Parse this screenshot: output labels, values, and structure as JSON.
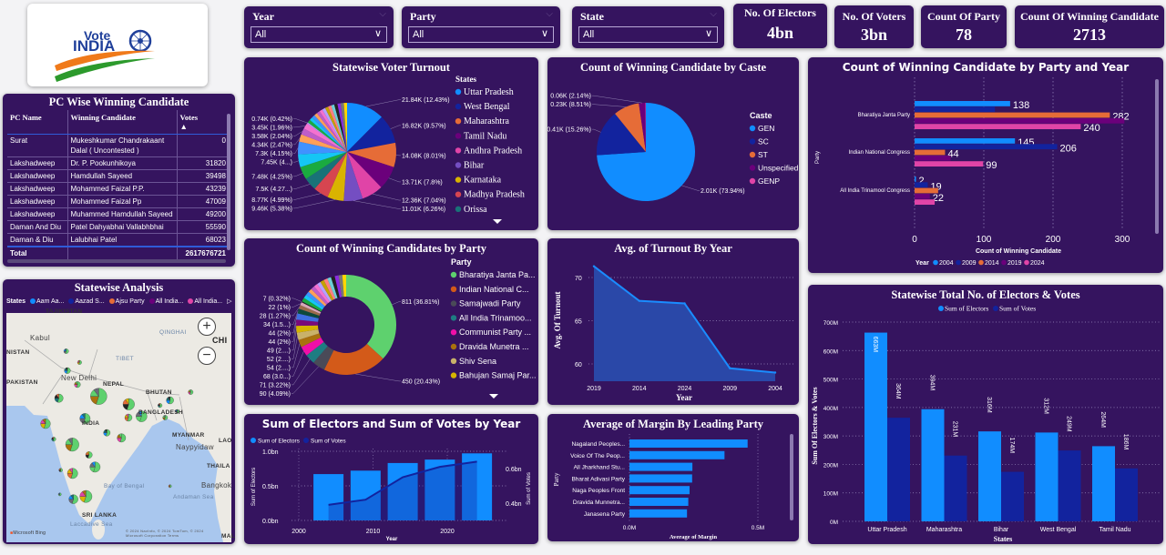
{
  "logo": {
    "text_top": "Vote",
    "text_bottom": "INDIA"
  },
  "filters": [
    {
      "label": "Year",
      "value": "All"
    },
    {
      "label": "Party",
      "value": "All"
    },
    {
      "label": "State",
      "value": "All"
    }
  ],
  "kpis": [
    {
      "title": "No. Of Electors",
      "value": "4bn"
    },
    {
      "title": "No. Of Voters",
      "value": "3bn"
    },
    {
      "title": "Count Of Party",
      "value": "78"
    },
    {
      "title": "Count Of Winning Candidate",
      "value": "2713"
    }
  ],
  "pc_table": {
    "title": "PC Wise Winning Candidate",
    "columns": [
      "PC Name",
      "Winning Candidate",
      "Votes"
    ],
    "rows": [
      [
        "Surat",
        "Mukeshkumar Chandrakaant Dalal ( Uncontested )",
        "0"
      ],
      [
        "Lakshadweep",
        "Dr. P. Pookunhikoya",
        "31820"
      ],
      [
        "Lakshadweep",
        "Hamdullah Sayeed",
        "39498"
      ],
      [
        "Lakshadweep",
        "Mohammed Faizal P.P.",
        "43239"
      ],
      [
        "Lakshadweep",
        "Mohammed Faizal Pp",
        "47009"
      ],
      [
        "Lakshadweep",
        "Muhammed Hamdullah Sayeed",
        "49200"
      ],
      [
        "Daman And Diu",
        "Patel Dahyabhai Vallabhbhai",
        "55590"
      ],
      [
        "Daman & Diu",
        "Lalubhai Patel",
        "68023"
      ]
    ],
    "total": [
      "Total",
      "",
      "2617676721"
    ]
  },
  "map": {
    "title": "Statewise Analysis",
    "legend_label": "States",
    "legend": [
      {
        "name": "Aam Aa...",
        "color": "#118DFF"
      },
      {
        "name": "Aazad S...",
        "color": "#12239E"
      },
      {
        "name": "Ajsu Party",
        "color": "#E66C37"
      },
      {
        "name": "All India...",
        "color": "#6B007B"
      },
      {
        "name": "All India...",
        "color": "#E044A7"
      }
    ],
    "places": [
      "TAJIKISTAN",
      "Kabul",
      "NISTAN",
      "PAKISTAN",
      "New Delhi",
      "NEPAL",
      "BHUTAN",
      "BANGLADESH",
      "INDIA",
      "MYANMAR",
      "Naypyidaw",
      "THAILA",
      "Bangkok",
      "Bay of Bengal",
      "Andaman Sea",
      "SRI LANKA",
      "Laccadive Sea",
      "CHI",
      "QINGHAI",
      "TIBET",
      "LAO",
      "MALA"
    ],
    "attribution": "Microsoft Bing",
    "copyright": "© 2024 NavInfo, © 2024 TomTom, © 2024 Microsoft Corporation Terms"
  },
  "chart_data": [
    {
      "type": "pie",
      "title": "Statewise Voter Turnout",
      "legend_title": "States",
      "slices": [
        {
          "name": "Uttar Pradesh",
          "value": 21.84,
          "percent": 12.43,
          "data_label": "21.84K (12.43%)",
          "color": "#118DFF"
        },
        {
          "name": "West Bengal",
          "value": 16.82,
          "percent": 9.57,
          "data_label": "16.82K (9.57%)",
          "color": "#12239E"
        },
        {
          "name": "Maharashtra",
          "value": 14.08,
          "percent": 8.01,
          "data_label": "14.08K (8.01%)",
          "color": "#E66C37"
        },
        {
          "name": "Tamil Nadu",
          "value": 13.71,
          "percent": 7.8,
          "data_label": "13.71K (7.8%)",
          "color": "#6B007B"
        },
        {
          "name": "Andhra Pradesh",
          "value": 12.36,
          "percent": 7.04,
          "data_label": "12.36K (7.04%)",
          "color": "#E044A7"
        },
        {
          "name": "Bihar",
          "value": 11.01,
          "percent": 6.26,
          "data_label": "11.01K (6.26%)",
          "color": "#744EC2"
        },
        {
          "name": "Karnataka",
          "value": 9.46,
          "percent": 5.38,
          "data_label": "9.46K (5.38%)",
          "color": "#D9B300"
        },
        {
          "name": "Madhya Pradesh",
          "value": 8.77,
          "percent": 4.99,
          "data_label": "8.77K (4.99%)",
          "color": "#D64550"
        },
        {
          "name": "Orissa",
          "value": 7.5,
          "data_label": "7.5K (4.27...)",
          "color": "#197278"
        },
        {
          "value": 7.48,
          "percent": 4.25,
          "data_label": "7.48K (4.25%)",
          "color": "#1AAB40"
        },
        {
          "value": 7.45,
          "data_label": "7.45K (4...)",
          "color": "#15C6F4"
        },
        {
          "value": 7.3,
          "percent": 4.15,
          "data_label": "7.3K (4.15%)",
          "color": "#4092FF"
        },
        {
          "value": 4.34,
          "percent": 2.47,
          "data_label": "4.34K (2.47%)",
          "color": "#FFA058"
        },
        {
          "value": 3.58,
          "percent": 2.04,
          "data_label": "3.58K (2.04%)",
          "color": "#BE5DC9"
        },
        {
          "value": 3.45,
          "percent": 1.96,
          "data_label": "3.45K (1.96%)",
          "color": "#F472D0"
        },
        {
          "value": 0.74,
          "percent": 0.42,
          "data_label": "0.74K (0.42%)",
          "color": "#B5A1FF"
        }
      ]
    },
    {
      "type": "pie",
      "title": "Count of Winning Candidate by Caste",
      "legend_title": "Caste",
      "slices": [
        {
          "name": "GEN",
          "value": 2.01,
          "percent": 73.94,
          "data_label": "2.01K (73.94%)",
          "color": "#118DFF"
        },
        {
          "name": "SC",
          "value": 0.41,
          "percent": 15.26,
          "data_label": "0.41K (15.26%)",
          "color": "#12239E"
        },
        {
          "name": "ST",
          "value": 0.23,
          "percent": 8.51,
          "data_label": "0.23K (8.51%)",
          "color": "#E66C37"
        },
        {
          "name": "Unspecified",
          "value": 0.06,
          "percent": 2.14,
          "data_label": "0.06K (2.14%)",
          "color": "#6B007B"
        },
        {
          "name": "GENP",
          "color": "#E044A7"
        }
      ]
    },
    {
      "type": "bar",
      "orientation": "horizontal",
      "title": "Count of Winning Candidate by Party and Year",
      "xlabel": "Count of Winning Candidate",
      "ylabel": "Party",
      "xlim": [
        0,
        300
      ],
      "xticks": [
        "0",
        "100",
        "200",
        "300"
      ],
      "legend_title": "Year",
      "categories": [
        "Bharatiya Janta Party",
        "Indian National Congress",
        "All India Trinamool Congress"
      ],
      "series": [
        {
          "name": "2004",
          "color": "#118DFF",
          "values": [
            138,
            145,
            2
          ],
          "labels": [
            "138",
            "145",
            "2"
          ]
        },
        {
          "name": "2009",
          "color": "#12239E",
          "values": [
            116,
            206,
            19
          ],
          "labels": [
            "",
            "206",
            "19"
          ]
        },
        {
          "name": "2014",
          "color": "#E66C37",
          "values": [
            282,
            44,
            34
          ],
          "labels": [
            "282",
            "44",
            ""
          ]
        },
        {
          "name": "2019",
          "color": "#6B007B",
          "values": [
            303,
            52,
            22
          ],
          "labels": [
            "",
            "",
            "22"
          ]
        },
        {
          "name": "2024",
          "color": "#E044A7",
          "values": [
            240,
            99,
            29
          ],
          "labels": [
            "240",
            "99",
            ""
          ]
        }
      ]
    },
    {
      "type": "pie",
      "subtype": "donut",
      "title": "Count of Winning Candidates by Party",
      "legend_title": "Party",
      "slices": [
        {
          "name": "Bharatiya Janta Pa...",
          "value": 811,
          "percent": 36.81,
          "data_label": "811 (36.81%)",
          "color": "#5ED16E"
        },
        {
          "name": "Indian National C...",
          "value": 450,
          "percent": 20.43,
          "data_label": "450 (20.43%)",
          "color": "#D35A19"
        },
        {
          "name": "Samajwadi Party",
          "value": 90,
          "percent": 4.09,
          "data_label": "90 (4.09%)",
          "color": "#4A4A58"
        },
        {
          "name": "All India Trinamoo...",
          "value": 71,
          "percent": 3.22,
          "data_label": "71 (3.22%)",
          "color": "#1E7D82"
        },
        {
          "name": "Communist Party ...",
          "value": 68,
          "data_label": "68 (3.0...)",
          "color": "#F00FA8"
        },
        {
          "name": "Dravida Munetra ...",
          "value": 54,
          "data_label": "54 (2....)",
          "color": "#A9720E"
        },
        {
          "name": "Shiv Sena",
          "value": 52,
          "data_label": "52 (2....)",
          "color": "#C9B26A"
        },
        {
          "name": "Bahujan Samaj Par...",
          "value": 49,
          "data_label": "49 (2....)",
          "color": "#D6B400"
        },
        {
          "value": 44,
          "percent": 2,
          "data_label": "44 (2%)",
          "color": "#7A0A7A"
        },
        {
          "value": 44,
          "percent": 2,
          "data_label": "44 (2%)",
          "color": "#3F6FE0"
        },
        {
          "value": 34,
          "data_label": "34 (1.5...)",
          "color": "#0E4A3A"
        },
        {
          "value": 28,
          "percent": 1.27,
          "data_label": "28 (1.27%)",
          "color": "#9C6B4A"
        },
        {
          "value": 22,
          "percent": 1,
          "data_label": "22 (1%)",
          "color": "#D8A9B8"
        },
        {
          "value": 7,
          "percent": 0.32,
          "data_label": "7 (0.32%)",
          "color": "#222222"
        }
      ]
    },
    {
      "type": "area",
      "title": "Avg. of Turnout By Year",
      "xlabel": "Year",
      "ylabel": "Avg. Of Turnout",
      "ylim": [
        58,
        72
      ],
      "yticks": [
        60,
        65,
        70
      ],
      "x": [
        "2019",
        "2014",
        "2024",
        "2009",
        "2004"
      ],
      "y": [
        71.3,
        67.3,
        67.0,
        59.5,
        59.0
      ]
    },
    {
      "type": "bar+line",
      "title": "Sum of Electors and Sum of Votes by Year",
      "xlabel": "Year",
      "ylabel": "Sum of Electors",
      "y2label": "Sum of Votes",
      "xticks": [
        2000,
        2010,
        2020
      ],
      "xlim": [
        2000,
        2027
      ],
      "ylim": [
        0,
        1.0
      ],
      "yticks": [
        "0.0bn",
        "0.5bn",
        "1.0bn"
      ],
      "y2lim": [
        0.3,
        0.7
      ],
      "y2ticks": [
        "0.4bn",
        "0.6bn"
      ],
      "x": [
        2004,
        2009,
        2014,
        2019,
        2024
      ],
      "series": [
        {
          "name": "Sum of Electors",
          "type": "bar",
          "color": "#118DFF",
          "values": [
            0.67,
            0.72,
            0.83,
            0.88,
            0.97
          ]
        },
        {
          "name": "Sum of Votes",
          "type": "line",
          "color": "#12239E",
          "values": [
            0.39,
            0.42,
            0.55,
            0.61,
            0.64
          ]
        }
      ]
    },
    {
      "type": "bar",
      "orientation": "horizontal",
      "title": "Average of Margin By Leading Party",
      "xlabel": "Average of Margin",
      "ylabel": "Party",
      "xlim": [
        0,
        0.55
      ],
      "xticks": [
        "0.0M",
        "0.5M"
      ],
      "categories": [
        "Nagaland Peoples...",
        "Voice Of The Peop...",
        "All Jharkhand Stu...",
        "Bharat Adivasi Party",
        "Naga Peoples Front",
        "Dravida Munnetra...",
        "Janasena Party"
      ],
      "values": [
        0.46,
        0.37,
        0.245,
        0.244,
        0.234,
        0.229,
        0.224
      ],
      "color": "#118DFF"
    },
    {
      "type": "bar",
      "title": "Statewise Total No. of Electors & Votes",
      "xlabel": "States",
      "ylabel": "Sum Of Electors & Votes",
      "ylim": [
        0,
        700
      ],
      "yticks": [
        "0M",
        "100M",
        "200M",
        "300M",
        "400M",
        "500M",
        "600M",
        "700M"
      ],
      "categories": [
        "Uttar Pradesh",
        "Maharashtra",
        "Bihar",
        "West Bengal",
        "Tamil Nadu"
      ],
      "series": [
        {
          "name": "Sum of Electors",
          "color": "#118DFF",
          "values": [
            663,
            394,
            316,
            312,
            264
          ],
          "labels": [
            "663M",
            "394M",
            "316M",
            "312M",
            "264M"
          ]
        },
        {
          "name": "Sum of Votes",
          "color": "#12239E",
          "values": [
            364,
            231,
            174,
            249,
            186
          ],
          "labels": [
            "364M",
            "231M",
            "174M",
            "249M",
            "186M"
          ]
        }
      ]
    }
  ]
}
